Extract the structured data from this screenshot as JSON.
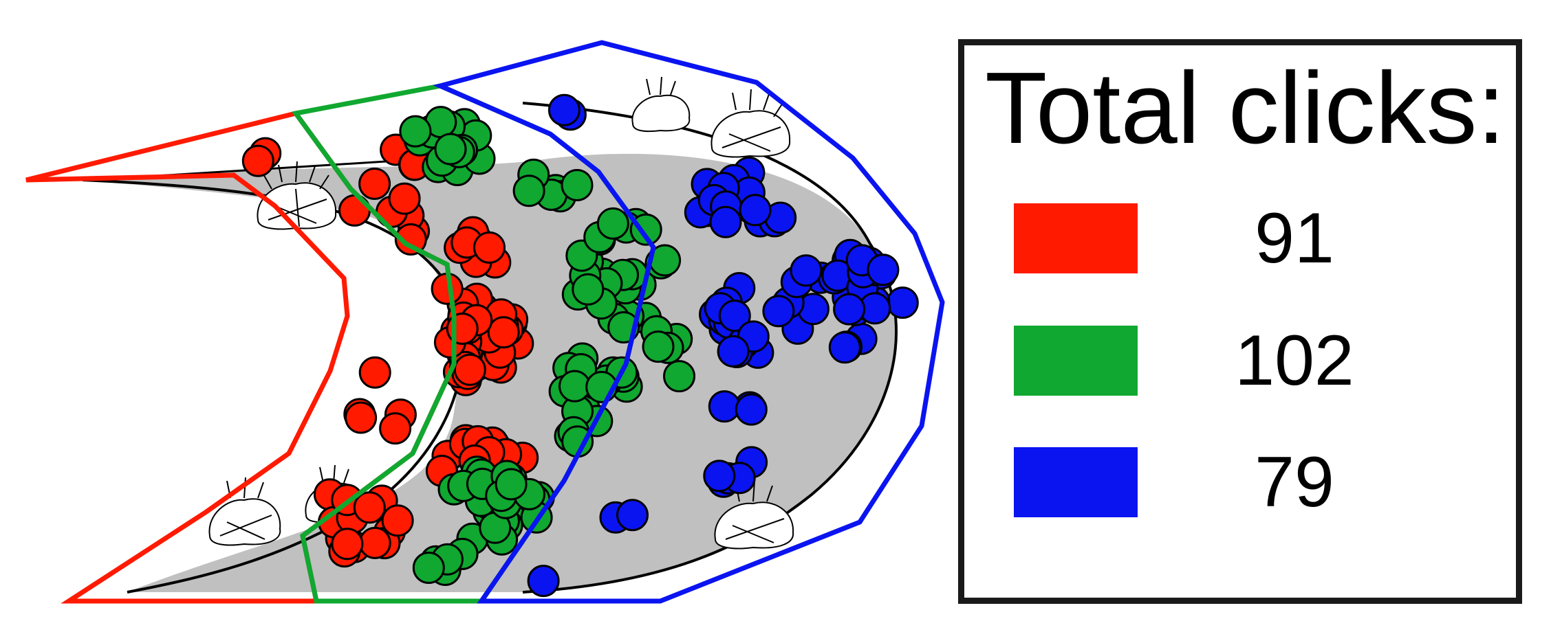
{
  "legend": {
    "title": "Total clicks:",
    "entries": [
      {
        "color": "#ff1a00",
        "value": "91"
      },
      {
        "color": "#10a830",
        "value": "102"
      },
      {
        "color": "#0a14f0",
        "value": "79"
      }
    ]
  },
  "regions": [
    {
      "name": "red-zone",
      "color": "#ff1a00",
      "clicks": 91
    },
    {
      "name": "green-zone",
      "color": "#10a830",
      "clicks": 102
    },
    {
      "name": "blue-zone",
      "color": "#0a14f0",
      "clicks": 79
    }
  ],
  "icons": [
    "bush-icon"
  ]
}
